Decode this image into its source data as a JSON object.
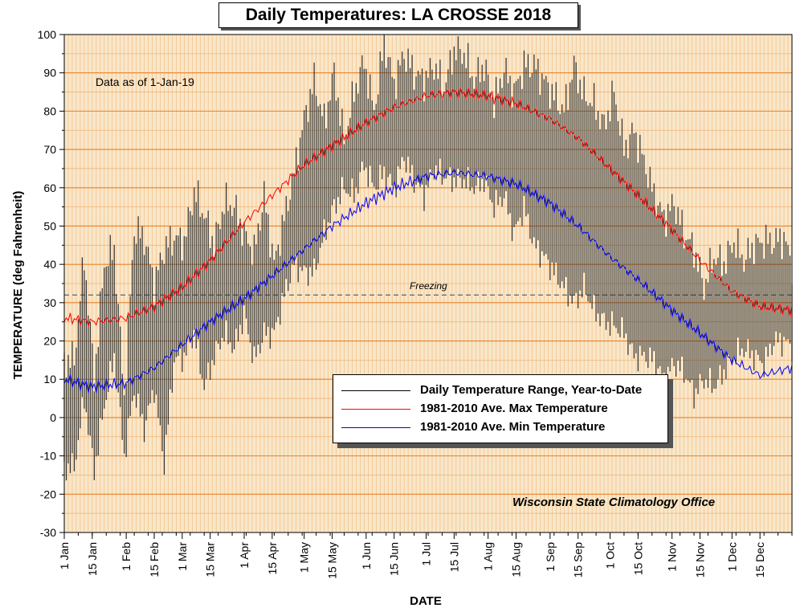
{
  "chart_data": {
    "type": "line",
    "title": "Daily Temperatures: LA CROSSE 2018",
    "xlabel": "DATE",
    "ylabel": "TEMPERATURE (deg Fahrenheit)",
    "ylim": [
      -30,
      100
    ],
    "y_ticks": [
      "100",
      "90",
      "80",
      "70",
      "60",
      "50",
      "40",
      "30",
      "20",
      "10",
      "0",
      "-10",
      "-20",
      "-30"
    ],
    "y_tick_values": [
      100,
      90,
      80,
      70,
      60,
      50,
      40,
      30,
      20,
      10,
      0,
      -10,
      -20,
      -30
    ],
    "x_ticks": [
      "1 Jan",
      "15 Jan",
      "1 Feb",
      "15 Feb",
      "1 Mar",
      "15 Mar",
      "1 Apr",
      "15 Apr",
      "1 May",
      "15 May",
      "1 Jun",
      "15 Jun",
      "1 Jul",
      "15 Jul",
      "1 Aug",
      "15 Aug",
      "1 Sep",
      "15 Sep",
      "1 Oct",
      "15 Oct",
      "1 Nov",
      "15 Nov",
      "1 Dec",
      "15 Dec"
    ],
    "x_tick_days": [
      1,
      15,
      32,
      46,
      60,
      74,
      91,
      105,
      121,
      135,
      152,
      166,
      182,
      196,
      213,
      227,
      244,
      258,
      274,
      288,
      305,
      319,
      335,
      349
    ],
    "grid": true,
    "annotation_asof": "Data as of 1-Jan-19",
    "freezing_label": "Freezing",
    "freezing_value": 32,
    "credit": "Wisconsin State Climatology Office",
    "legend_position": "lower-right",
    "series": [
      {
        "name": "Daily Temperature Range, Year-to-Date",
        "color": "#000000",
        "kind": "range"
      },
      {
        "name": "1981-2010 Ave. Max Temperature",
        "color": "#ff0000",
        "kind": "line",
        "x": [
          1,
          15,
          32,
          46,
          60,
          74,
          91,
          105,
          121,
          135,
          152,
          166,
          182,
          196,
          213,
          227,
          244,
          258,
          274,
          288,
          305,
          319,
          335,
          349,
          365
        ],
        "y": [
          26,
          25,
          26,
          29,
          34,
          41,
          51,
          58,
          66,
          71,
          77,
          81,
          84,
          85,
          84,
          82,
          78,
          73,
          65,
          58,
          49,
          41,
          33,
          29,
          28
        ]
      },
      {
        "name": "1981-2010 Ave. Min Temperature",
        "color": "#0000ff",
        "kind": "line",
        "x": [
          1,
          15,
          32,
          46,
          60,
          74,
          91,
          105,
          121,
          135,
          152,
          166,
          182,
          196,
          213,
          227,
          244,
          258,
          274,
          288,
          305,
          319,
          335,
          349,
          365
        ],
        "y": [
          10,
          8,
          9,
          13,
          19,
          25,
          31,
          37,
          44,
          50,
          56,
          60,
          63,
          64,
          63,
          61,
          56,
          50,
          42,
          36,
          28,
          22,
          15,
          11,
          13
        ]
      }
    ],
    "daily_range": {
      "day_step": 5,
      "start_day": 1,
      "max": [
        15,
        42,
        10,
        40,
        44,
        5,
        49,
        47,
        35,
        44,
        47,
        46,
        59,
        53,
        45,
        56,
        55,
        48,
        43,
        58,
        40,
        52,
        64,
        78,
        88,
        77,
        90,
        72,
        85,
        93,
        80,
        98,
        87,
        95,
        90,
        88,
        92,
        86,
        96,
        95,
        88,
        92,
        82,
        91,
        85,
        92,
        92,
        88,
        84,
        80,
        92,
        84,
        82,
        76,
        85,
        70,
        75,
        67,
        58,
        52,
        56,
        48,
        44,
        34,
        42,
        40,
        46,
        41,
        45,
        46,
        46,
        47,
        38
      ],
      "min": [
        -13,
        5,
        -14,
        3,
        16,
        -10,
        7,
        -3,
        8,
        -12,
        15,
        16,
        22,
        8,
        16,
        22,
        18,
        27,
        15,
        22,
        22,
        32,
        40,
        38,
        38,
        48,
        55,
        60,
        58,
        66,
        60,
        64,
        60,
        68,
        62,
        58,
        65,
        63,
        62,
        62,
        60,
        62,
        55,
        58,
        48,
        55,
        45,
        42,
        38,
        34,
        30,
        34,
        28,
        25,
        24,
        22,
        16,
        16,
        15,
        10,
        14,
        12,
        6,
        10,
        8,
        12,
        16,
        18,
        16,
        14,
        20,
        20,
        18
      ]
    }
  },
  "colors": {
    "plot_bg": "#f9e7c9",
    "major_grid": "#e8822a",
    "minor_grid": "#f0b67a",
    "range_line": "#2b2b2b",
    "max_line": "#ff0000",
    "min_line": "#0000ff",
    "freezing_line": "#555555"
  }
}
